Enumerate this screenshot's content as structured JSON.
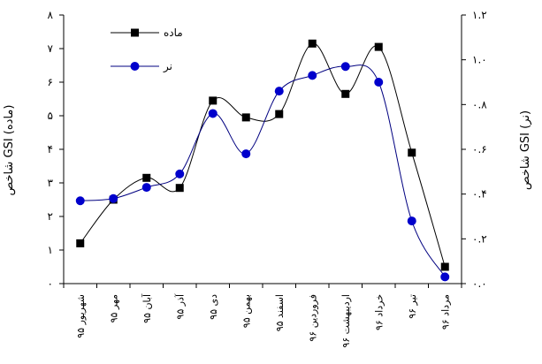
{
  "chart_data": {
    "type": "line",
    "categories": [
      "شهریور ۹۵",
      "مهر ۹۵",
      "آبان ۹۵",
      "آذر ۹۵",
      "دی ۹۵",
      "بهمن ۹۵",
      "اسفند ۹۵",
      "فروردین ۹۶",
      "اردیبهشت ۹۶",
      "خرداد ۹۶",
      "تیر ۹۶",
      "مرداد ۹۶"
    ],
    "y_left_label": "شاخص GSI (ماده)",
    "y_right_label": "شاخص GSI (نر)",
    "y_left_ticks": [
      "۰",
      "۱",
      "۲",
      "۳",
      "۴",
      "۵",
      "۶",
      "۷",
      "۸"
    ],
    "y_right_ticks": [
      "۰.۰",
      "۰.۲",
      "۰.۴",
      "۰.۶",
      "۰.۸",
      "۱.۰",
      "۱.۲"
    ],
    "y_left_lim": [
      0,
      8
    ],
    "y_right_lim": [
      0,
      1.2
    ],
    "legend_position": "top-left",
    "series": [
      {
        "name": "ماده",
        "axis": "left",
        "marker": "square",
        "color": "#000000",
        "values": [
          1.2,
          2.5,
          3.15,
          2.85,
          5.45,
          4.95,
          5.05,
          7.15,
          5.65,
          7.05,
          3.9,
          0.5
        ]
      },
      {
        "name": "نر",
        "axis": "right",
        "marker": "circle",
        "color": "#0000cc",
        "values": [
          0.37,
          0.38,
          0.43,
          0.49,
          0.76,
          0.58,
          0.86,
          0.93,
          0.97,
          0.9,
          0.28,
          0.03
        ]
      }
    ]
  }
}
